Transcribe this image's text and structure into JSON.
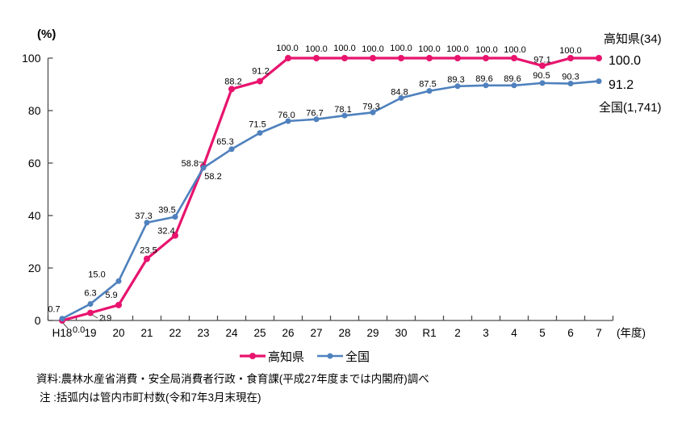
{
  "chart_data": {
    "type": "line",
    "x_unit": "(年度)",
    "y_unit": "(%)",
    "categories": [
      "H18",
      "19",
      "20",
      "21",
      "22",
      "23",
      "24",
      "25",
      "26",
      "27",
      "28",
      "29",
      "30",
      "R1",
      "2",
      "3",
      "4",
      "5",
      "6",
      "7"
    ],
    "ylim": [
      0,
      100
    ],
    "y_ticks": [
      0,
      20,
      40,
      60,
      80,
      100
    ],
    "grid": false,
    "legend_position": "bottom",
    "series": [
      {
        "name": "高知県",
        "color": "#e8146e",
        "line_width": 3.2,
        "marker_radius": 4,
        "values": [
          0.0,
          2.9,
          5.9,
          23.5,
          32.4,
          58.8,
          88.2,
          91.2,
          100.0,
          100.0,
          100.0,
          100.0,
          100.0,
          100.0,
          100.0,
          100.0,
          100.0,
          97.1,
          100.0,
          100.0
        ],
        "labels": [
          "0.0",
          "2.9",
          "5.9",
          "23.5",
          "32.4",
          "58.8",
          "88.2",
          "91.2",
          "100.0",
          "100.0",
          "100.0",
          "100.0",
          "100.0",
          "100.0",
          "100.0",
          "100.0",
          "100.0",
          "97.1",
          "100.0",
          ""
        ],
        "label_offsets": [
          [
            13,
            15,
            "start"
          ],
          [
            11,
            10,
            "start"
          ],
          [
            -9,
            -9,
            "middle"
          ],
          [
            2,
            -7,
            "middle"
          ],
          [
            -11,
            -2,
            "middle"
          ],
          [
            -6,
            0,
            "end"
          ],
          [
            2,
            -6,
            "middle"
          ],
          [
            1,
            -9,
            "middle"
          ],
          [
            -1,
            -9,
            "middle"
          ],
          [
            0,
            -8,
            "middle"
          ],
          [
            0,
            -9,
            "middle"
          ],
          [
            0,
            -8,
            "middle"
          ],
          [
            0,
            -9,
            "middle"
          ],
          [
            0,
            -8,
            "middle"
          ],
          [
            0,
            -8,
            "middle"
          ],
          [
            1,
            -7,
            "middle"
          ],
          [
            1,
            -7,
            "middle"
          ],
          [
            0,
            -4,
            "middle"
          ],
          [
            0,
            -6,
            "middle"
          ],
          null
        ]
      },
      {
        "name": "全国",
        "color": "#4f81bd",
        "line_width": 2.6,
        "marker_radius": 3.5,
        "values": [
          0.7,
          6.3,
          15.0,
          37.3,
          39.5,
          58.2,
          65.3,
          71.5,
          76.0,
          76.7,
          78.1,
          79.3,
          84.8,
          87.5,
          89.3,
          89.6,
          89.6,
          90.5,
          90.3,
          91.2
        ],
        "labels": [
          "0.7",
          "6.3",
          "15.0",
          "37.3",
          "39.5",
          "58.2",
          "65.3",
          "71.5",
          "76.0",
          "76.7",
          "78.1",
          "79.3",
          "84.8",
          "87.5",
          "89.3",
          "89.6",
          "89.6",
          "90.5",
          "90.3",
          ""
        ],
        "label_offsets": [
          [
            -10,
            -8,
            "middle"
          ],
          [
            0,
            -10,
            "middle"
          ],
          [
            -27,
            -5,
            "middle"
          ],
          [
            -4,
            -5,
            "middle"
          ],
          [
            -10,
            -5,
            "middle"
          ],
          [
            12,
            14,
            "middle"
          ],
          [
            -8,
            -6,
            "middle"
          ],
          [
            -3,
            -7,
            "middle"
          ],
          [
            -2,
            -4,
            "middle"
          ],
          [
            -2,
            -4,
            "middle"
          ],
          [
            -2,
            -4,
            "middle"
          ],
          [
            -2,
            -4,
            "middle"
          ],
          [
            -2,
            -4,
            "middle"
          ],
          [
            -2,
            -5,
            "middle"
          ],
          [
            -2,
            -5,
            "middle"
          ],
          [
            -2,
            -5,
            "middle"
          ],
          [
            -2,
            -5,
            "middle"
          ],
          [
            -1,
            -6,
            "middle"
          ],
          [
            0,
            -5,
            "middle"
          ],
          null
        ]
      }
    ],
    "leader_lines": [
      {
        "for": "高知県-0.0",
        "points": [
          [
            78,
            400
          ],
          [
            85,
            408
          ],
          [
            88,
            408
          ]
        ]
      },
      {
        "for": "高知県-2.9",
        "points": [
          [
            114,
            390
          ],
          [
            121,
            394
          ]
        ]
      },
      {
        "for": "高知県-58.8",
        "points": [
          [
            246,
            201
          ],
          [
            252,
            201
          ],
          [
            252,
            205
          ]
        ]
      }
    ],
    "right_labels": {
      "kochi_name": "高知県(34)",
      "kochi_value": "100.0",
      "zenkoku_value": "91.2",
      "zenkoku_name": "全国(1,741)"
    }
  },
  "notes": {
    "source": "資料:農林水産省消費・安全局消費者行政・食育課(平成27年度までは内閣府)調べ",
    "note": "注 :括弧内は管内市町村数(令和7年3月末現在)"
  }
}
